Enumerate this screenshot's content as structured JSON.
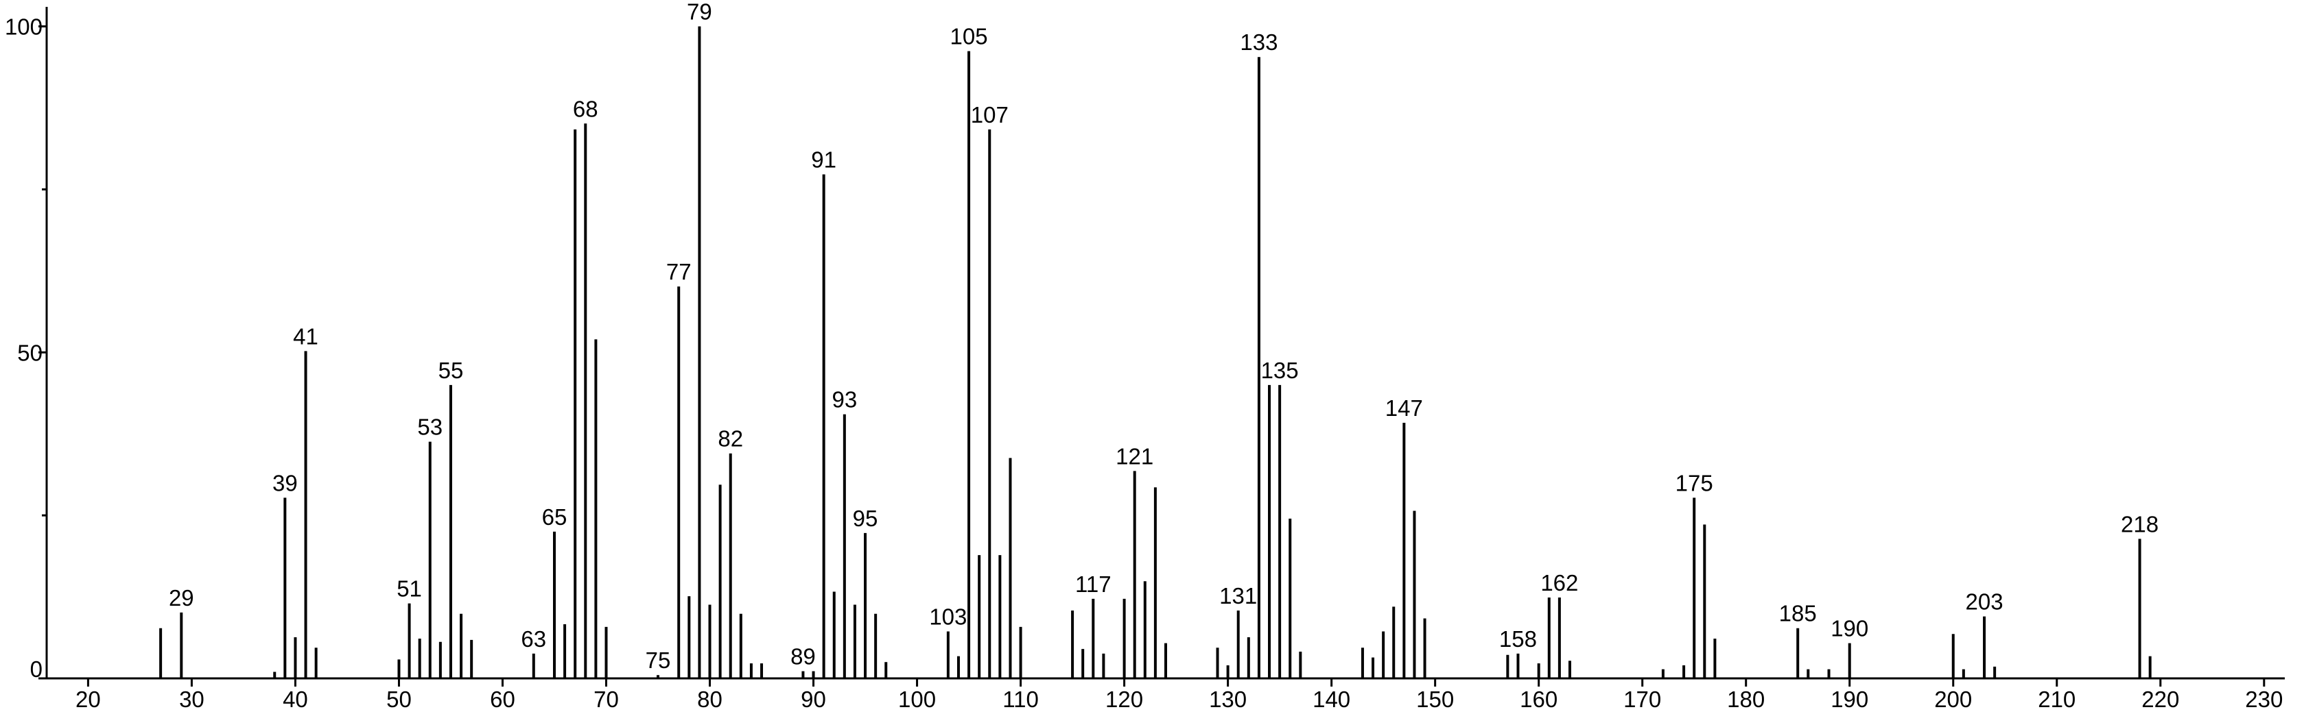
{
  "chart_data": {
    "type": "stem",
    "x": [
      27,
      29,
      38,
      39,
      40,
      41,
      42,
      50,
      51,
      52,
      53,
      54,
      55,
      56,
      57,
      63,
      65,
      66,
      67,
      68,
      69,
      70,
      75,
      77,
      78,
      79,
      80,
      81,
      82,
      83,
      84,
      85,
      89,
      90,
      91,
      92,
      93,
      94,
      95,
      96,
      97,
      103,
      104,
      105,
      106,
      107,
      108,
      109,
      110,
      115,
      116,
      117,
      118,
      120,
      121,
      122,
      123,
      124,
      129,
      130,
      131,
      132,
      133,
      134,
      135,
      136,
      137,
      143,
      144,
      145,
      146,
      147,
      148,
      149,
      157,
      158,
      160,
      161,
      162,
      163,
      172,
      174,
      175,
      176,
      177,
      185,
      186,
      188,
      190,
      200,
      201,
      203,
      204,
      218,
      219
    ],
    "values": [
      7.7,
      10.1,
      1,
      27.7,
      6.3,
      50.2,
      4.7,
      2.9,
      11.5,
      6.1,
      36.3,
      5.6,
      45,
      9.9,
      5.9,
      3.8,
      22.5,
      8.3,
      84.2,
      85.1,
      52,
      7.9,
      0.5,
      60.1,
      12.6,
      100,
      11.3,
      29.7,
      34.5,
      9.9,
      2.3,
      2.3,
      1.1,
      1.1,
      77.3,
      13.3,
      40.5,
      11.3,
      22.3,
      9.9,
      2.5,
      7.2,
      3.4,
      96.2,
      18.9,
      84.2,
      18.9,
      33.8,
      7.9,
      10.4,
      4.5,
      12.2,
      3.8,
      12.2,
      31.8,
      14.9,
      29.3,
      5.4,
      4.7,
      2,
      10.4,
      6.3,
      95.3,
      45,
      45,
      24.5,
      4.1,
      4.7,
      3.2,
      7.2,
      11,
      39.2,
      25.7,
      9.2,
      3.6,
      3.8,
      2.3,
      12.4,
      12.4,
      2.7,
      1.4,
      2,
      27.7,
      23.6,
      6.1,
      7.7,
      1.4,
      1.4,
      5.4,
      6.8,
      1.4,
      9.5,
      1.8,
      21.4,
      3.4
    ],
    "peak_labels": [
      null,
      "29",
      null,
      "39",
      null,
      "41",
      null,
      null,
      "51",
      null,
      "53",
      null,
      "55",
      null,
      null,
      "63",
      "65",
      null,
      null,
      "68",
      null,
      null,
      "75",
      "77",
      null,
      "79",
      null,
      null,
      "82",
      null,
      null,
      null,
      "89",
      null,
      "91",
      null,
      "93",
      null,
      "95",
      null,
      null,
      "103",
      null,
      "105",
      null,
      "107",
      null,
      null,
      null,
      null,
      null,
      "117",
      null,
      null,
      "121",
      null,
      null,
      null,
      null,
      null,
      "131",
      null,
      "133",
      null,
      "135",
      null,
      null,
      null,
      null,
      null,
      null,
      "147",
      null,
      null,
      null,
      "158",
      null,
      null,
      "162",
      null,
      null,
      null,
      "175",
      null,
      null,
      "185",
      null,
      null,
      "190",
      null,
      null,
      "203",
      null,
      "218",
      null
    ],
    "color": "#000000",
    "xlim": [
      16,
      232
    ],
    "xticks": [
      20,
      30,
      40,
      50,
      60,
      70,
      80,
      90,
      100,
      110,
      120,
      130,
      140,
      150,
      160,
      170,
      180,
      190,
      200,
      210,
      220,
      230
    ],
    "ylim": [
      0,
      100
    ],
    "yticks": [
      0,
      50,
      100
    ],
    "yminor_ticks": [
      25,
      75
    ]
  }
}
